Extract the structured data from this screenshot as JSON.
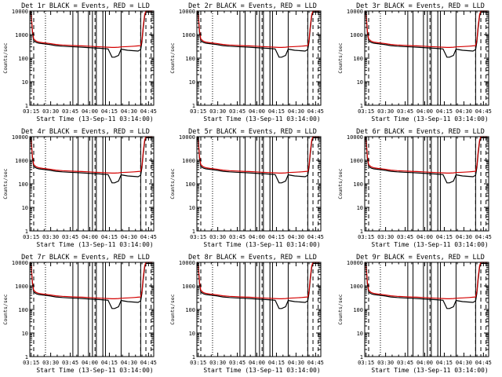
{
  "chart_data": {
    "type": "line",
    "ylabel": "Counts/sec",
    "xlabel": "Start Time (13-Sep-11 03:14:00)",
    "x_tick_labels": [
      "03:15",
      "03:30",
      "03:45",
      "04:00",
      "04:15",
      "04:30",
      "04:45"
    ],
    "x_tick_minutes": [
      1,
      16,
      31,
      46,
      61,
      76,
      91
    ],
    "xlim_minutes": [
      0,
      95
    ],
    "y_scale": "log",
    "ylim": [
      1,
      10000
    ],
    "y_tick_labels": [
      "1",
      "10",
      "100",
      "1000",
      "10000"
    ],
    "y_tick_values": [
      1,
      10,
      100,
      1000,
      10000
    ],
    "legend": "BLACK = Events, RED = LLD",
    "series_colors": {
      "events": "#000000",
      "lld": "#d40000"
    },
    "dashed_vertical_lines_minutes": [
      3,
      50,
      85,
      89,
      93
    ],
    "dotted_vertical_lines_minutes": [
      12
    ],
    "solid_vertical_lines_minutes": [
      33,
      37,
      45,
      48,
      51,
      56,
      58,
      70,
      85
    ],
    "x_minutes": [
      0,
      1,
      2,
      3,
      4,
      5,
      7,
      10,
      15,
      20,
      25,
      30,
      35,
      40,
      45,
      50,
      55,
      60,
      63,
      65,
      68,
      70,
      75,
      80,
      83,
      85,
      86,
      87,
      88,
      89,
      90,
      91,
      92,
      93,
      94
    ],
    "series": [
      {
        "name": "Events",
        "color": "#000000",
        "values": [
          9000,
          7000,
          1200,
          550,
          500,
          460,
          430,
          410,
          380,
          340,
          320,
          310,
          300,
          290,
          280,
          270,
          260,
          245,
          110,
          110,
          130,
          240,
          215,
          205,
          200,
          230,
          500,
          2000,
          6000,
          9000,
          9000,
          9000,
          9000,
          9000,
          9000
        ]
      },
      {
        "name": "LLD",
        "color": "#d40000",
        "values": [
          10000,
          8000,
          1500,
          650,
          580,
          520,
          480,
          450,
          420,
          380,
          360,
          350,
          340,
          330,
          320,
          310,
          300,
          290,
          285,
          285,
          290,
          300,
          310,
          320,
          330,
          340,
          600,
          2500,
          7000,
          10000,
          10000,
          10000,
          10000,
          10000,
          10000
        ]
      }
    ],
    "panels": [
      {
        "title": "Det 1r BLACK = Events, RED = LLD"
      },
      {
        "title": "Det 2r BLACK = Events, RED = LLD"
      },
      {
        "title": "Det 3r BLACK = Events, RED = LLD"
      },
      {
        "title": "Det 4r BLACK = Events, RED = LLD"
      },
      {
        "title": "Det 5r BLACK = Events, RED = LLD"
      },
      {
        "title": "Det 6r BLACK = Events, RED = LLD"
      },
      {
        "title": "Det 7r BLACK = Events, RED = LLD"
      },
      {
        "title": "Det 8r BLACK = Events, RED = LLD"
      },
      {
        "title": "Det 9r BLACK = Events, RED = LLD"
      }
    ]
  }
}
